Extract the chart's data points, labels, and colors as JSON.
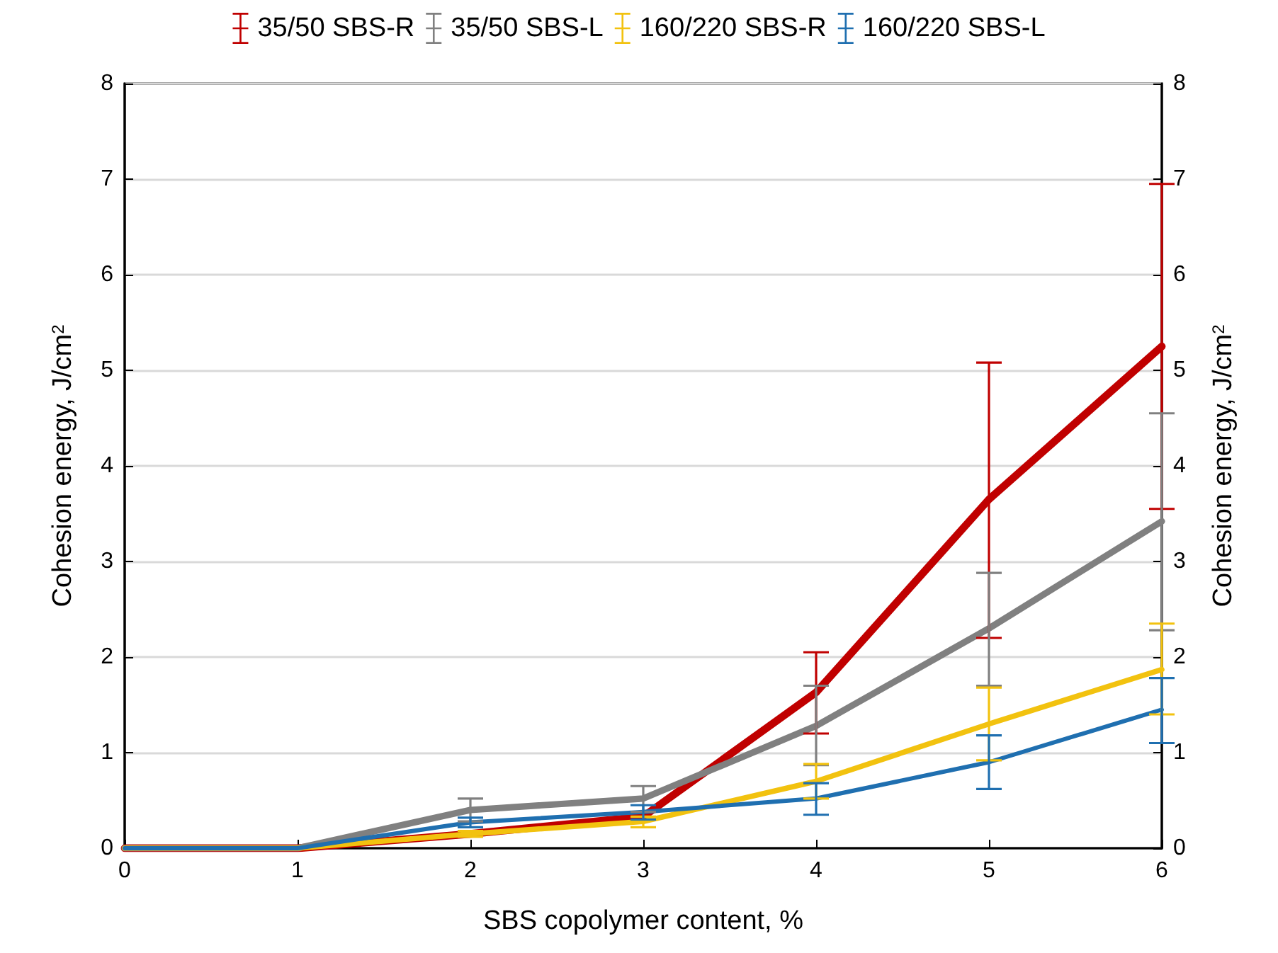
{
  "chart_data": {
    "type": "line",
    "xlabel": "SBS copolymer content, %",
    "ylabel": "Cohesion energy, J/cm$^{2}$",
    "y2label": "Cohesion energy, J/cm$^{2}$",
    "x": [
      0,
      1,
      2,
      3,
      4,
      5,
      6
    ],
    "series": [
      {
        "name": "35/50 SBS-R",
        "color": "#c00000",
        "values": [
          0,
          0,
          0.15,
          0.33,
          1.63,
          3.65,
          5.25
        ],
        "errors": [
          null,
          null,
          null,
          null,
          [
            1.2,
            2.05
          ],
          [
            2.2,
            5.08
          ],
          [
            3.55,
            6.95
          ]
        ]
      },
      {
        "name": "35/50 SBS-L",
        "color": "#808080",
        "values": [
          0,
          0,
          0.4,
          0.52,
          1.28,
          2.3,
          3.42
        ],
        "errors": [
          null,
          null,
          [
            0.28,
            0.52
          ],
          [
            0.38,
            0.65
          ],
          [
            0.87,
            1.7
          ],
          [
            1.7,
            2.88
          ],
          [
            2.28,
            4.55
          ]
        ]
      },
      {
        "name": "160/220 SBS-R",
        "color": "#f2c20f",
        "values": [
          0,
          0,
          0.15,
          0.28,
          0.7,
          1.3,
          1.87
        ],
        "errors": [
          null,
          null,
          [
            0.12,
            0.18
          ],
          [
            0.22,
            0.33
          ],
          [
            0.52,
            0.88
          ],
          [
            0.92,
            1.68
          ],
          [
            1.4,
            2.35
          ]
        ]
      },
      {
        "name": "160/220 SBS-L",
        "color": "#1f6fb0",
        "values": [
          0,
          0,
          0.27,
          0.38,
          0.52,
          0.9,
          1.45
        ],
        "errors": [
          null,
          null,
          [
            0.22,
            0.32
          ],
          [
            0.3,
            0.45
          ],
          [
            0.35,
            0.68
          ],
          [
            0.62,
            1.18
          ],
          [
            1.1,
            1.78
          ]
        ]
      }
    ],
    "xlim": [
      0,
      6
    ],
    "xticks": [
      0,
      1,
      2,
      3,
      4,
      5,
      6
    ],
    "ylim": [
      0,
      8
    ],
    "yticks": [
      0,
      1,
      2,
      3,
      4,
      5,
      6,
      7,
      8
    ],
    "y2lim": [
      0,
      8
    ],
    "y2ticks": [
      0,
      1,
      2,
      3,
      4,
      5,
      6,
      7,
      8
    ],
    "grid": "y",
    "legend": "top",
    "marker": "none",
    "line_style": "solid"
  }
}
